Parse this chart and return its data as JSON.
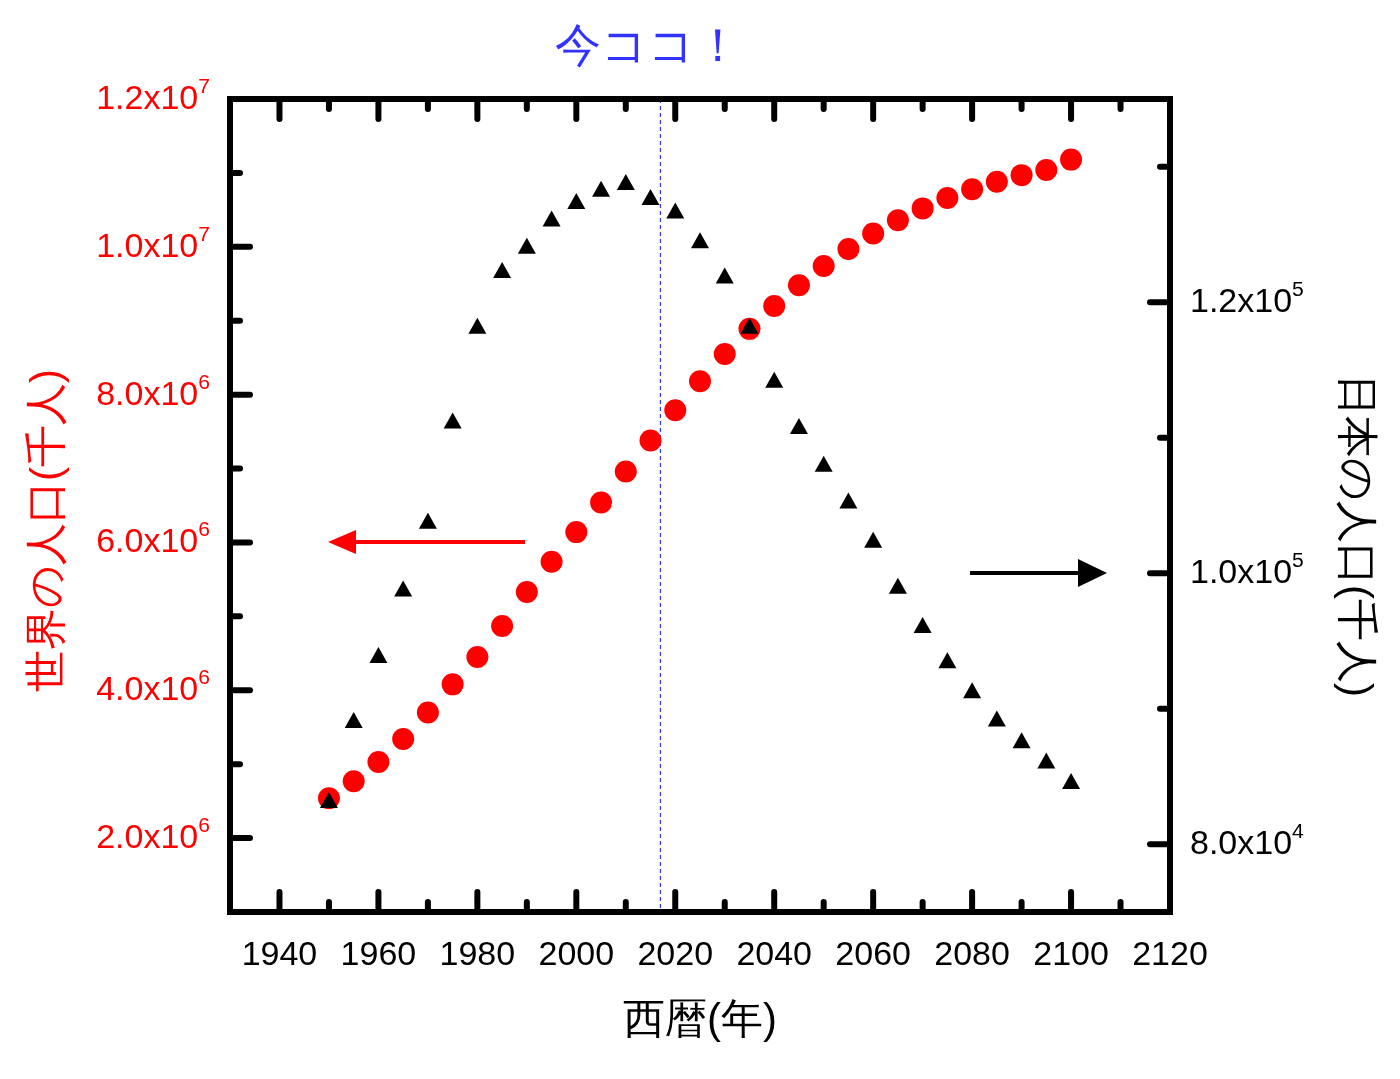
{
  "chart_data": {
    "type": "scatter",
    "xlabel": "西暦(年)",
    "ylabel": "世界の人口(千人)",
    "y2label": "日本の人口(千人)",
    "xlim": [
      1930,
      2120
    ],
    "xticks": [
      1940,
      {
        "value": 1950,
        "label": null
      },
      1960,
      {
        "value": 1970,
        "label": null
      },
      1980,
      {
        "value": 1990,
        "label": null
      },
      2000,
      {
        "value": 2010,
        "label": null
      },
      2020,
      {
        "value": 2030,
        "label": null
      },
      2040,
      {
        "value": 2050,
        "label": null
      },
      2060,
      {
        "value": 2070,
        "label": null
      },
      2080,
      {
        "value": 2090,
        "label": null
      },
      2100,
      {
        "value": 2110,
        "label": null
      },
      2120
    ],
    "ylim": [
      1000000,
      12000000
    ],
    "yticks": [
      {
        "value": 2000000,
        "label": "2.0x10$^{6}$"
      },
      {
        "value": 3000000,
        "label": null
      },
      {
        "value": 4000000,
        "label": "4.0x10$^{6}$"
      },
      {
        "value": 5000000,
        "label": null
      },
      {
        "value": 6000000,
        "label": "6.0x10$^{6}$"
      },
      {
        "value": 7000000,
        "label": null
      },
      {
        "value": 8000000,
        "label": "8.0x10$^{6}$"
      },
      {
        "value": 9000000,
        "label": null
      },
      {
        "value": 10000000,
        "label": "1.0x10$^{7}$"
      },
      {
        "value": 11000000,
        "label": null
      },
      {
        "value": 12000000,
        "label": "1.2x10$^{7}$"
      }
    ],
    "y2lim": [
      75000,
      135000
    ],
    "y2ticks": [
      {
        "value": 80000,
        "label": "8.0x10$^{4}$"
      },
      {
        "value": 90000,
        "label": null
      },
      {
        "value": 100000,
        "label": "1.0x10$^{5}$"
      },
      {
        "value": 110000,
        "label": null
      },
      {
        "value": 120000,
        "label": "1.2x10$^{5}$"
      },
      {
        "value": 130000,
        "label": null
      }
    ],
    "ref_lines": [
      {
        "axis": "x",
        "value": 2017,
        "label": "今ココ！",
        "color": "#3333ff",
        "line_style": "dashed"
      }
    ],
    "x": [
      1950,
      1955,
      1960,
      1965,
      1970,
      1975,
      1980,
      1985,
      1990,
      1995,
      2000,
      2005,
      2010,
      2015,
      2020,
      2025,
      2030,
      2035,
      2040,
      2045,
      2050,
      2055,
      2060,
      2065,
      2070,
      2075,
      2080,
      2085,
      2090,
      2095,
      2100
    ],
    "series": [
      {
        "color": "#ff0000",
        "marker": "circle",
        "values": [
          2540000,
          2770000,
          3030000,
          3340000,
          3700000,
          4080000,
          4450000,
          4870000,
          5330000,
          5740000,
          6140000,
          6540000,
          6960000,
          7380000,
          7790000,
          8180000,
          8550000,
          8890000,
          9200000,
          9480000,
          9740000,
          9970000,
          10180000,
          10360000,
          10520000,
          10660000,
          10780000,
          10880000,
          10970000,
          11040000,
          11180000
        ]
      },
      {
        "color": "#000000",
        "marker": "triangle",
        "axis": "y2",
        "values": [
          83200,
          89100,
          93900,
          98800,
          103800,
          111200,
          118200,
          122300,
          124100,
          126100,
          127400,
          128300,
          128800,
          127700,
          126700,
          124500,
          121900,
          118200,
          114200,
          110800,
          108000,
          105300,
          102400,
          99000,
          96100,
          93500,
          91300,
          89200,
          87600,
          86100,
          84600
        ]
      }
    ]
  }
}
